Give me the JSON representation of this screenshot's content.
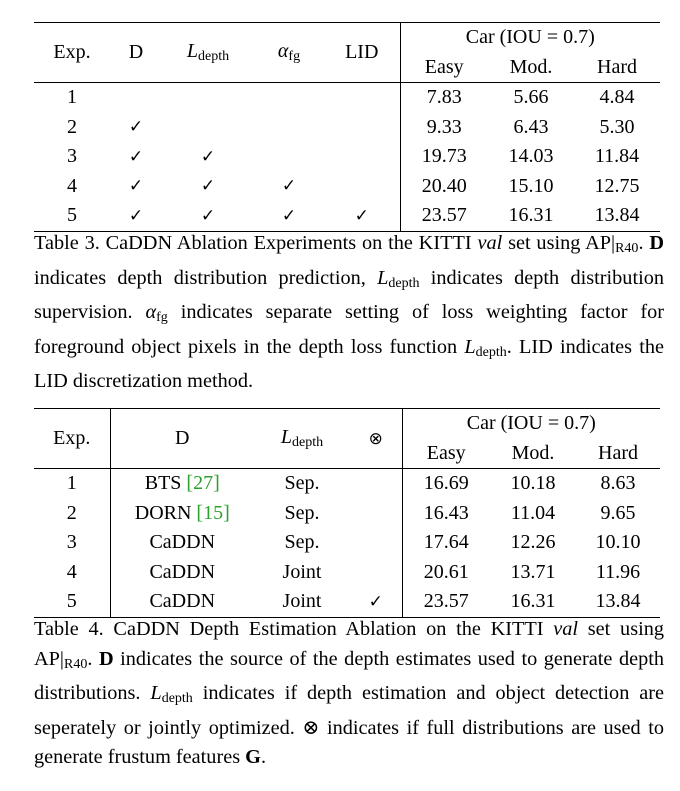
{
  "table3": {
    "headers": {
      "exp": "Exp.",
      "d": "D",
      "ldepth_l": "L",
      "ldepth_sub": "depth",
      "alpha_l": "α",
      "alpha_sub": "fg",
      "lid": "LID",
      "group": "Car (IOU = 0.7)",
      "easy": "Easy",
      "mod": "Mod.",
      "hard": "Hard"
    },
    "rows": [
      {
        "exp": "1",
        "d": "",
        "ld": "",
        "alpha": "",
        "lid": "",
        "easy": "7.83",
        "mod": "5.66",
        "hard": "4.84"
      },
      {
        "exp": "2",
        "d": "✓",
        "ld": "",
        "alpha": "",
        "lid": "",
        "easy": "9.33",
        "mod": "6.43",
        "hard": "5.30"
      },
      {
        "exp": "3",
        "d": "✓",
        "ld": "✓",
        "alpha": "",
        "lid": "",
        "easy": "19.73",
        "mod": "14.03",
        "hard": "11.84"
      },
      {
        "exp": "4",
        "d": "✓",
        "ld": "✓",
        "alpha": "✓",
        "lid": "",
        "easy": "20.40",
        "mod": "15.10",
        "hard": "12.75"
      },
      {
        "exp": "5",
        "d": "✓",
        "ld": "✓",
        "alpha": "✓",
        "lid": "✓",
        "easy": "23.57",
        "mod": "16.31",
        "hard": "13.84"
      }
    ],
    "caption": {
      "p1": "Table 3. CaDDN Ablation Experiments on the KITTI ",
      "val": "val",
      "p2": " set using ",
      "ap": "AP|",
      "ap_sub": "R40",
      "p3": ". ",
      "d": "D",
      "p4": " indicates depth distribution prediction, ",
      "l": "L",
      "l_sub": "depth",
      "p5": " indicates depth distribution supervision. ",
      "alpha": "α",
      "alpha_sub": "fg",
      "p6": " indicates separate setting of loss weighting factor for foreground object pixels in the depth loss function ",
      "l2": "L",
      "l2_sub": "depth",
      "p7": ". LID indicates the LID discretization method."
    }
  },
  "table4": {
    "headers": {
      "exp": "Exp.",
      "d": "D",
      "ldepth_l": "L",
      "ldepth_sub": "depth",
      "otimes": "⊗",
      "group": "Car (IOU = 0.7)",
      "easy": "Easy",
      "mod": "Mod.",
      "hard": "Hard"
    },
    "rows": [
      {
        "exp": "1",
        "d": "BTS",
        "cite": "[27]",
        "ld": "Sep.",
        "ot": "",
        "easy": "16.69",
        "mod": "10.18",
        "hard": "8.63"
      },
      {
        "exp": "2",
        "d": "DORN",
        "cite": "[15]",
        "ld": "Sep.",
        "ot": "",
        "easy": "16.43",
        "mod": "11.04",
        "hard": "9.65"
      },
      {
        "exp": "3",
        "d": "CaDDN",
        "cite": "",
        "ld": "Sep.",
        "ot": "",
        "easy": "17.64",
        "mod": "12.26",
        "hard": "10.10"
      },
      {
        "exp": "4",
        "d": "CaDDN",
        "cite": "",
        "ld": "Joint",
        "ot": "",
        "easy": "20.61",
        "mod": "13.71",
        "hard": "11.96"
      },
      {
        "exp": "5",
        "d": "CaDDN",
        "cite": "",
        "ld": "Joint",
        "ot": "✓",
        "easy": "23.57",
        "mod": "16.31",
        "hard": "13.84"
      }
    ],
    "caption": {
      "p1": "Table 4. CaDDN Depth Estimation Ablation on the KITTI ",
      "val": "val",
      "p2": " set using ",
      "ap": "AP|",
      "ap_sub": "R40",
      "p3": ". ",
      "d": "D",
      "p4": " indicates the source of the depth estimates used to generate depth distributions. ",
      "l": "L",
      "l_sub": "depth",
      "p5": " indicates if depth estimation and object detection are seperately or jointly optimized. ",
      "otimes": "⊗",
      "p6": " indicates if full distributions are used to generate frustum features ",
      "g": "G",
      "p7": "."
    }
  }
}
